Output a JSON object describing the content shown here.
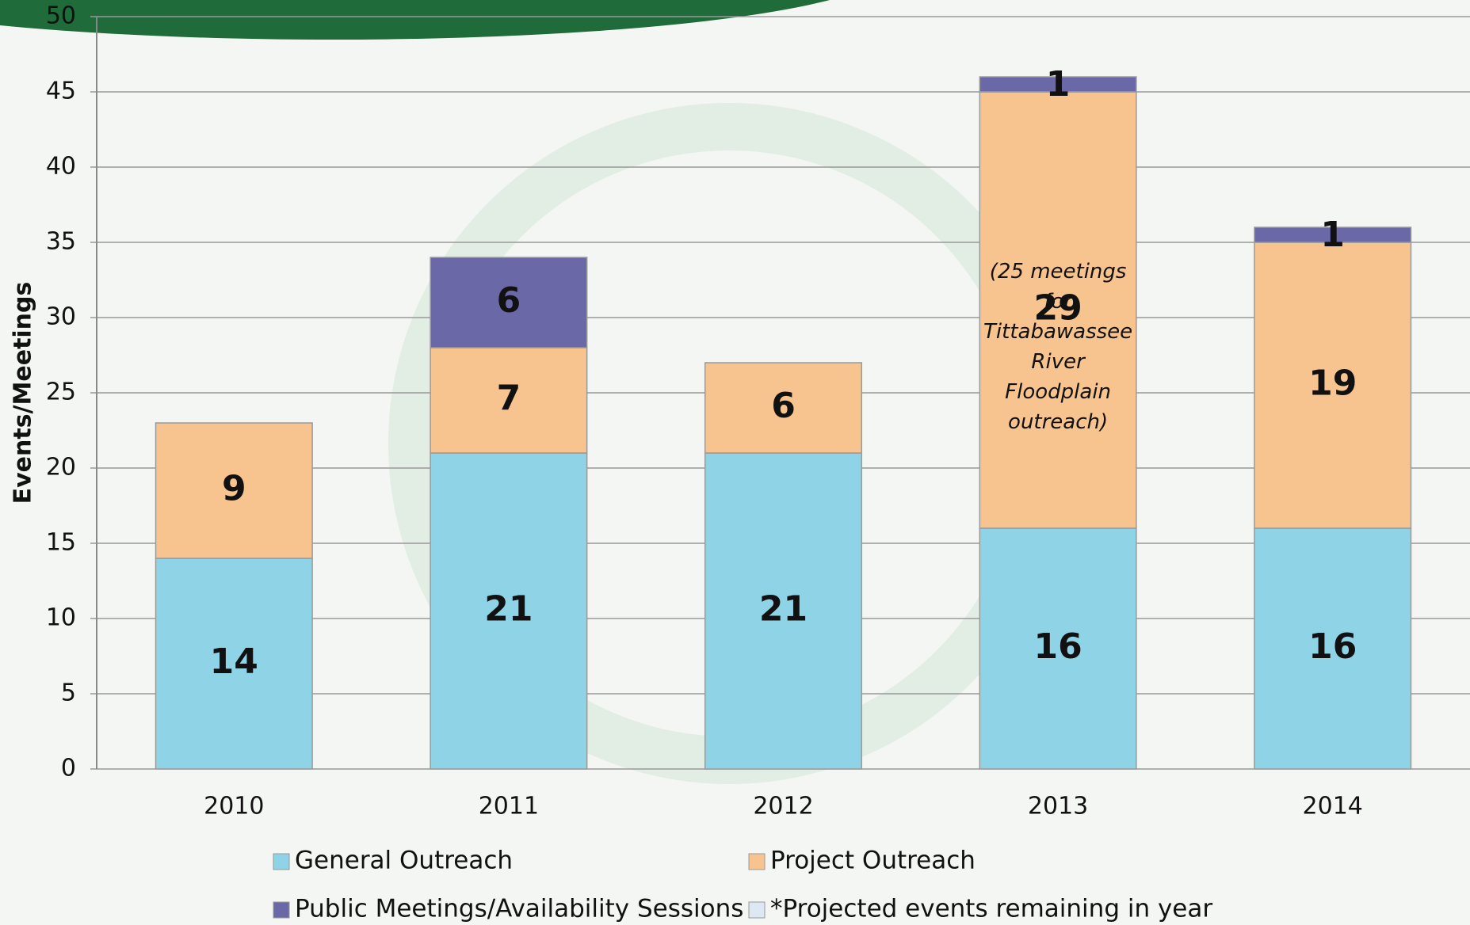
{
  "chart_data": {
    "type": "bar",
    "stacked": true,
    "y_label": "Events/Meetings",
    "categories": [
      "2010",
      "2011",
      "2012",
      "2013",
      "2014"
    ],
    "series": [
      {
        "name": "General Outreach",
        "color": "#8fd3e6",
        "values": [
          14,
          21,
          21,
          16,
          16
        ]
      },
      {
        "name": "Project Outreach",
        "color": "#f7c38e",
        "values": [
          9,
          7,
          6,
          29,
          19
        ]
      },
      {
        "name": "Public Meetings/Availability Sessions",
        "color": "#6b68a8",
        "values": [
          null,
          6,
          null,
          1,
          1
        ]
      },
      {
        "name": "*Projected events remaining in year",
        "color": "#dde8f3",
        "values": [
          null,
          null,
          null,
          null,
          null
        ]
      }
    ],
    "annotation": "(25 meetings for Tittabawassee River Floodplain outreach)",
    "ylim": [
      0,
      50
    ],
    "yticks": [
      0,
      5,
      10,
      15,
      20,
      25,
      30,
      35,
      40,
      45,
      50
    ],
    "grid": true
  }
}
